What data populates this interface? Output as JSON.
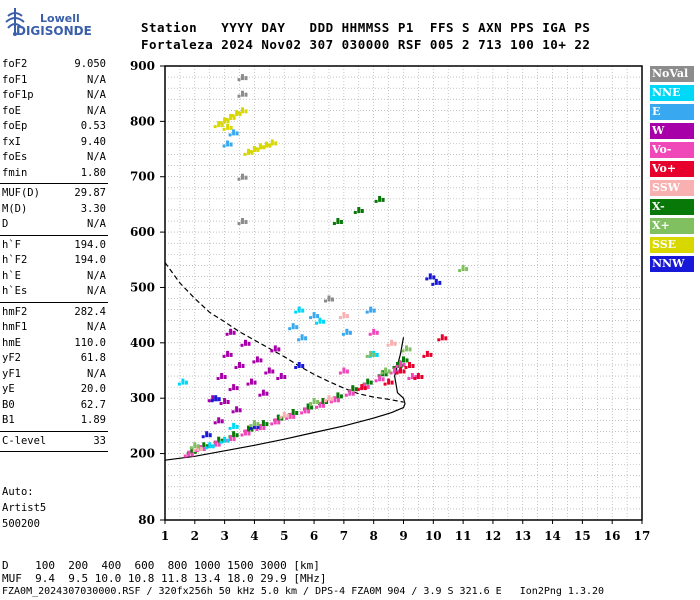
{
  "logo": {
    "top": "Lowell",
    "bottom": "DIGISONDE"
  },
  "header": {
    "line1": "Station   YYYY DAY   DDD HHMMSS P1  FFS S AXN PPS IGA PS",
    "line2": "Fortaleza 2024 Nov02 307 030000 RSF 005 2 713 100 10+ 22"
  },
  "params": [
    {
      "name": "foF2",
      "value": "9.050"
    },
    {
      "name": "foF1",
      "value": "N/A"
    },
    {
      "name": "foF1p",
      "value": "N/A"
    },
    {
      "name": "foE",
      "value": "N/A"
    },
    {
      "name": "foEp",
      "value": "0.53"
    },
    {
      "name": "fxI",
      "value": "9.40"
    },
    {
      "name": "foEs",
      "value": "N/A"
    },
    {
      "name": "fmin",
      "value": "1.80"
    },
    {
      "name": "MUF(D)",
      "value": "29.87"
    },
    {
      "name": "M(D)",
      "value": "3.30"
    },
    {
      "name": "D",
      "value": "N/A"
    },
    {
      "name": "h`F",
      "value": "194.0"
    },
    {
      "name": "h`F2",
      "value": "194.0"
    },
    {
      "name": "h`E",
      "value": "N/A"
    },
    {
      "name": "h`Es",
      "value": "N/A"
    },
    {
      "name": "hmF2",
      "value": "282.4"
    },
    {
      "name": "hmF1",
      "value": "N/A"
    },
    {
      "name": "hmE",
      "value": "110.0"
    },
    {
      "name": "yF2",
      "value": "61.8"
    },
    {
      "name": "yF1",
      "value": "N/A"
    },
    {
      "name": "yE",
      "value": "20.0"
    },
    {
      "name": "B0",
      "value": "62.7"
    },
    {
      "name": "B1",
      "value": "1.89"
    },
    {
      "name": "C-level",
      "value": "33"
    }
  ],
  "auto": {
    "line1": "Auto:",
    "line2": "Artist5",
    "line3": "500200"
  },
  "legend": [
    {
      "label": "NoVal",
      "color": "#8c8c8c"
    },
    {
      "label": "NNE",
      "color": "#00d8f8"
    },
    {
      "label": "E",
      "color": "#38a8f0"
    },
    {
      "label": "W",
      "color": "#a800a8"
    },
    {
      "label": "Vo-",
      "color": "#f048b8"
    },
    {
      "label": "Vo+",
      "color": "#e8002c"
    },
    {
      "label": "SSW",
      "color": "#f8b0b0"
    },
    {
      "label": "X-",
      "color": "#087808"
    },
    {
      "label": "X+",
      "color": "#80c060"
    },
    {
      "label": "SSE",
      "color": "#d8d800"
    },
    {
      "label": "NNW",
      "color": "#1818d8"
    }
  ],
  "footer": {
    "d_row": "D    100  200  400  600  800 1000 1500 3000 [km]",
    "muf_row": "MUF  9.4  9.5 10.0 10.8 11.8 13.4 18.0 29.9 [MHz]",
    "file_row": "FZA0M_2024307030000.RSF / 320fx256h 50 kHz 5.0 km / DPS-4 FZA0M 904 / 3.9 S 321.6 E   Ion2Png 1.3.20"
  },
  "chart_data": {
    "type": "scatter",
    "title": "",
    "xlabel": "",
    "ylabel": "",
    "xlim": [
      1,
      17
    ],
    "ylim": [
      80,
      900
    ],
    "x_ticks": [
      1,
      2,
      3,
      4,
      5,
      6,
      7,
      8,
      9,
      10,
      11,
      12,
      13,
      14,
      15,
      16,
      17
    ],
    "y_ticks": [
      80,
      200,
      300,
      400,
      500,
      600,
      700,
      800,
      900
    ],
    "grid": true,
    "series": [
      {
        "name": "X-",
        "color": "#087808",
        "points": [
          [
            1.9,
            205
          ],
          [
            2.3,
            215
          ],
          [
            2.8,
            225
          ],
          [
            3.3,
            235
          ],
          [
            3.8,
            245
          ],
          [
            4.3,
            255
          ],
          [
            4.8,
            265
          ],
          [
            5.3,
            275
          ],
          [
            5.8,
            285
          ],
          [
            6.3,
            295
          ],
          [
            6.8,
            305
          ],
          [
            7.3,
            318
          ],
          [
            7.8,
            330
          ],
          [
            8.3,
            345
          ],
          [
            8.8,
            360
          ],
          [
            9.0,
            370
          ],
          [
            7.5,
            640
          ],
          [
            6.8,
            620
          ],
          [
            8.2,
            660
          ]
        ]
      },
      {
        "name": "Vo-",
        "color": "#f048b8",
        "points": [
          [
            1.8,
            200
          ],
          [
            2.2,
            210
          ],
          [
            2.7,
            218
          ],
          [
            3.2,
            228
          ],
          [
            3.7,
            238
          ],
          [
            4.2,
            248
          ],
          [
            4.7,
            258
          ],
          [
            5.2,
            268
          ],
          [
            5.7,
            278
          ],
          [
            6.2,
            288
          ],
          [
            6.7,
            298
          ],
          [
            7.2,
            310
          ],
          [
            7.7,
            322
          ],
          [
            8.2,
            336
          ],
          [
            8.7,
            350
          ],
          [
            8.9,
            362
          ],
          [
            9.3,
            340
          ],
          [
            8.0,
            420
          ],
          [
            7.0,
            350
          ]
        ]
      },
      {
        "name": "W",
        "color": "#a800a8",
        "points": [
          [
            2.6,
            300
          ],
          [
            2.9,
            340
          ],
          [
            3.1,
            380
          ],
          [
            3.3,
            320
          ],
          [
            3.5,
            360
          ],
          [
            3.7,
            400
          ],
          [
            3.9,
            330
          ],
          [
            4.1,
            370
          ],
          [
            4.3,
            310
          ],
          [
            4.5,
            350
          ],
          [
            4.7,
            390
          ],
          [
            4.9,
            340
          ],
          [
            3.4,
            280
          ],
          [
            2.8,
            260
          ],
          [
            3.2,
            420
          ],
          [
            3.0,
            295
          ]
        ]
      },
      {
        "name": "SSE",
        "color": "#d8d800",
        "points": [
          [
            2.8,
            795
          ],
          [
            3.0,
            802
          ],
          [
            3.2,
            808
          ],
          [
            3.4,
            815
          ],
          [
            3.6,
            820
          ],
          [
            3.8,
            745
          ],
          [
            4.0,
            750
          ],
          [
            4.2,
            755
          ],
          [
            4.4,
            758
          ],
          [
            4.6,
            762
          ],
          [
            3.1,
            790
          ]
        ]
      },
      {
        "name": "NNE",
        "color": "#00d8f8",
        "points": [
          [
            2.5,
            215
          ],
          [
            3.0,
            225
          ],
          [
            5.5,
            460
          ],
          [
            6.2,
            440
          ],
          [
            8.0,
            380
          ],
          [
            1.6,
            330
          ],
          [
            3.3,
            250
          ]
        ]
      },
      {
        "name": "E",
        "color": "#38a8f0",
        "points": [
          [
            5.3,
            430
          ],
          [
            5.6,
            410
          ],
          [
            6.0,
            450
          ],
          [
            7.1,
            420
          ],
          [
            7.9,
            460
          ],
          [
            3.1,
            760
          ],
          [
            3.3,
            780
          ]
        ]
      },
      {
        "name": "Vo+",
        "color": "#e8002c",
        "points": [
          [
            8.5,
            330
          ],
          [
            8.9,
            350
          ],
          [
            9.2,
            360
          ],
          [
            9.5,
            340
          ],
          [
            9.8,
            380
          ],
          [
            10.3,
            410
          ],
          [
            7.6,
            320
          ]
        ]
      },
      {
        "name": "NNW",
        "color": "#1818d8",
        "points": [
          [
            2.4,
            235
          ],
          [
            2.7,
            300
          ],
          [
            4.0,
            250
          ],
          [
            9.9,
            520
          ],
          [
            10.1,
            510
          ],
          [
            5.5,
            360
          ]
        ]
      },
      {
        "name": "SSW",
        "color": "#f8b0b0",
        "points": [
          [
            2.1,
            210
          ],
          [
            5.0,
            270
          ],
          [
            6.5,
            300
          ],
          [
            7.0,
            450
          ],
          [
            8.6,
            400
          ]
        ]
      },
      {
        "name": "X+",
        "color": "#80c060",
        "points": [
          [
            2.0,
            215
          ],
          [
            4.0,
            255
          ],
          [
            6.0,
            295
          ],
          [
            8.4,
            350
          ],
          [
            7.9,
            380
          ],
          [
            9.1,
            390
          ],
          [
            11.0,
            535
          ]
        ]
      },
      {
        "name": "NoVal",
        "color": "#8c8c8c",
        "points": [
          [
            3.6,
            880
          ],
          [
            3.6,
            850
          ],
          [
            3.6,
            700
          ],
          [
            3.6,
            620
          ],
          [
            6.5,
            480
          ]
        ]
      }
    ],
    "curves": [
      {
        "style": "dashed",
        "points": [
          [
            1.0,
            545
          ],
          [
            1.5,
            508
          ],
          [
            2.0,
            480
          ],
          [
            2.5,
            455
          ],
          [
            3.0,
            438
          ],
          [
            3.5,
            420
          ],
          [
            4.0,
            405
          ],
          [
            4.5,
            390
          ],
          [
            5.0,
            375
          ],
          [
            5.5,
            358
          ],
          [
            6.0,
            343
          ],
          [
            6.5,
            330
          ],
          [
            7.0,
            318
          ],
          [
            7.5,
            308
          ],
          [
            8.0,
            302
          ],
          [
            8.5,
            298
          ],
          [
            9.0,
            293
          ]
        ]
      },
      {
        "style": "solid",
        "points": [
          [
            1.0,
            188
          ],
          [
            2.0,
            195
          ],
          [
            3.0,
            205
          ],
          [
            4.0,
            215
          ],
          [
            5.0,
            226
          ],
          [
            6.0,
            238
          ],
          [
            7.0,
            250
          ],
          [
            8.0,
            264
          ],
          [
            8.6,
            274
          ],
          [
            9.0,
            283
          ],
          [
            9.05,
            290
          ],
          [
            9.0,
            300
          ],
          [
            8.8,
            310
          ],
          [
            8.7,
            340
          ],
          [
            8.9,
            380
          ],
          [
            9.0,
            410
          ]
        ]
      }
    ]
  }
}
